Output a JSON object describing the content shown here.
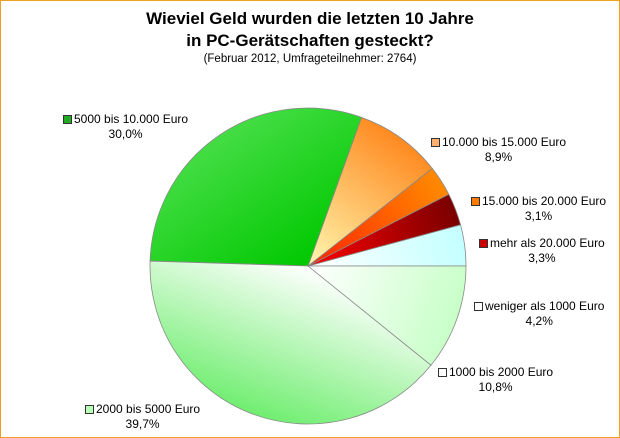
{
  "chart_data": {
    "type": "pie",
    "title_line1": "Wieviel Geld wurden die letzten 10 Jahre",
    "title_line2": "in PC-Gerätschaften gesteckt?",
    "subtitle": "(Februar 2012, Umfrageteilnehmer: 2764)",
    "start_category_index": 0,
    "direction": "counterclockwise",
    "categories": [
      "weniger als 1000 Euro",
      "mehr als 20.000 Euro",
      "15.000 bis 20.000 Euro",
      "10.000 bis 15.000 Euro",
      "5000 bis 10.000 Euro",
      "2000 bis 5000 Euro",
      "1000 bis 2000 Euro"
    ],
    "values": [
      4.2,
      3.3,
      3.1,
      8.9,
      30.0,
      39.7,
      10.8
    ],
    "value_labels": [
      "4,2%",
      "3,3%",
      "3,1%",
      "8,9%",
      "30,0%",
      "39,7%",
      "10,8%"
    ],
    "colors": [
      [
        "#ffffff",
        "#c4ffff"
      ],
      [
        "#ff0000",
        "#7a0000"
      ],
      [
        "#ff2200",
        "#ff8a00"
      ],
      [
        "#fff8b0",
        "#ff8a20"
      ],
      [
        "#00c800",
        "#44dd44"
      ],
      [
        "#ffffff",
        "#70ee70"
      ],
      [
        "#ffffff",
        "#c8ffc8"
      ]
    ],
    "swatch_colors": [
      "#ffffff",
      "#cc0000",
      "#ff7a00",
      "#ffb070",
      "#22aa22",
      "#b8ffb8",
      "#ffffff"
    ]
  }
}
